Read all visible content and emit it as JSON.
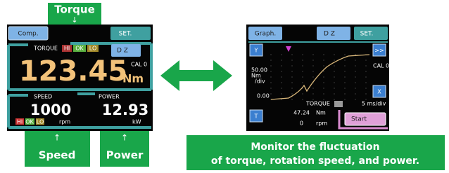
{
  "callouts": {
    "torque": {
      "label": "Torque",
      "arrow": "↓"
    },
    "speed": {
      "label": "Speed",
      "arrow": "↑"
    },
    "power": {
      "label": "Power",
      "arrow": "↑"
    }
  },
  "measurement_screen": {
    "buttons": {
      "comp": "Comp.",
      "set": "SET.",
      "dz": "D Z"
    },
    "torque": {
      "label": "TORQUE",
      "judgements": [
        "HI",
        "OK",
        "LO"
      ],
      "value": "123.45",
      "unit": "Nm",
      "cal": "CAL 0"
    },
    "speed": {
      "label": "SPEED",
      "value": "1000",
      "unit": "rpm",
      "judgements": [
        "HI",
        "OK",
        "LO"
      ]
    },
    "power": {
      "label": "POWER",
      "value": "12.93",
      "unit": "kW"
    }
  },
  "graph_screen": {
    "buttons": {
      "graph": "Graph.",
      "dz": "D Z",
      "set": "SET.",
      "y": "Y",
      "x": "X",
      "t": "T",
      "forward": ">>",
      "start": "Start"
    },
    "y_axis": {
      "top": "50.00",
      "unit": "Nm",
      "per": "/div",
      "bottom": "0.00"
    },
    "cal": "CAL 0",
    "channel": "TORQUE",
    "time_scale": "5 ms/div",
    "readouts": [
      {
        "value": "47.24",
        "unit": "Nm"
      },
      {
        "value": "0",
        "unit": "rpm"
      }
    ]
  },
  "caption": [
    "Monitor the fluctuation",
    "of torque, rotation speed, and power."
  ]
}
